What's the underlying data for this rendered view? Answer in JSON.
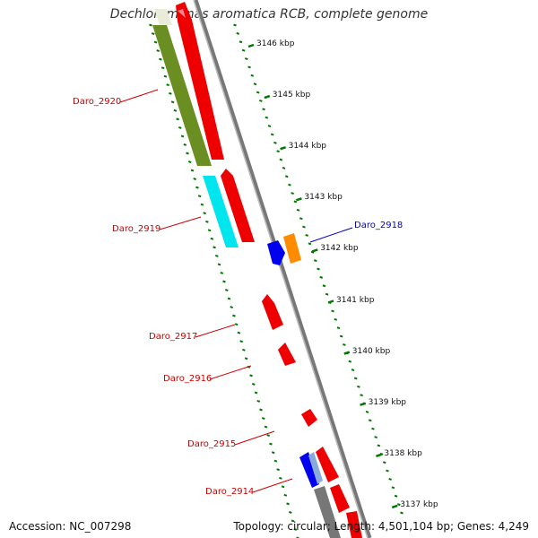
{
  "title": "Dechloromonas aromatica RCB, complete genome",
  "footer": {
    "accession": "Accession: NC_007298",
    "topology": "Topology: circular; Length: 4,501,104 bp; Genes: 4,249"
  },
  "colors": {
    "forward_gene": "#ee0000",
    "reverse_red": "#ee0000",
    "olive": "#6b8e23",
    "cyan": "#00e5ee",
    "blue": "#0000ee",
    "orange": "#ff8c00",
    "backbone": "#888888",
    "ticks": "#007700",
    "label_red": "#cc0000",
    "label_blue": "#0000cc"
  },
  "scale_ticks": [
    {
      "label": "3146 kbp"
    },
    {
      "label": "3145 kbp"
    },
    {
      "label": "3144 kbp"
    },
    {
      "label": "3143 kbp"
    },
    {
      "label": "3142 kbp"
    },
    {
      "label": "3141 kbp"
    },
    {
      "label": "3140 kbp"
    },
    {
      "label": "3139 kbp"
    },
    {
      "label": "3138 kbp"
    },
    {
      "label": "3137 kbp"
    }
  ],
  "gene_labels": [
    {
      "id": "Daro_2920",
      "label": "Daro_2920",
      "color": "red"
    },
    {
      "id": "Daro_2919",
      "label": "Daro_2919",
      "color": "red"
    },
    {
      "id": "Daro_2918",
      "label": "Daro_2918",
      "color": "blue"
    },
    {
      "id": "Daro_2917",
      "label": "Daro_2917",
      "color": "red"
    },
    {
      "id": "Daro_2916",
      "label": "Daro_2916",
      "color": "red"
    },
    {
      "id": "Daro_2915",
      "label": "Daro_2915",
      "color": "red"
    },
    {
      "id": "Daro_2914",
      "label": "Daro_2914",
      "color": "red"
    }
  ]
}
